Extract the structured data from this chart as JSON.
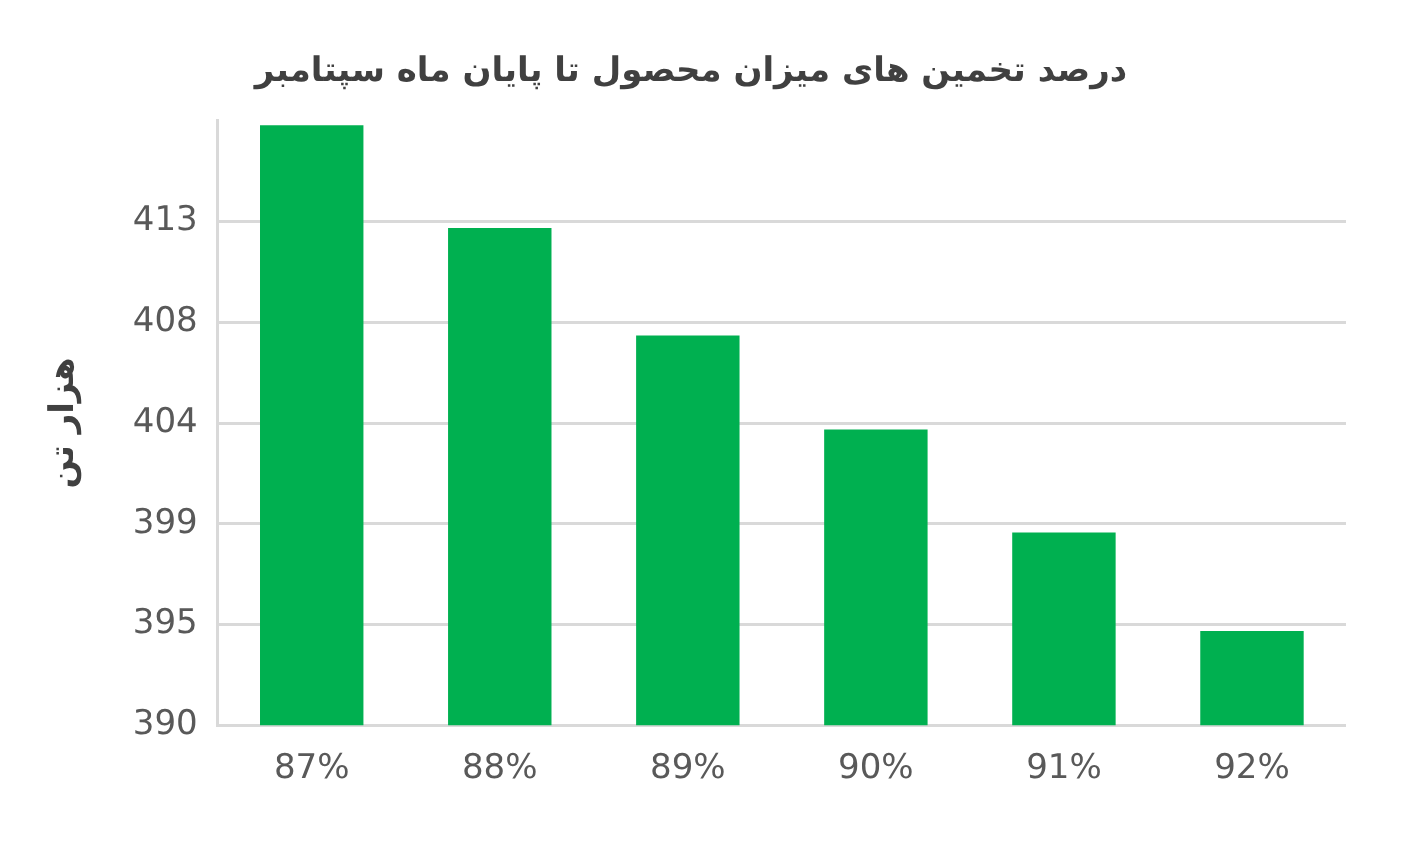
{
  "chart_data": {
    "type": "bar",
    "title": "درصد تخمین های میزان محصول تا پایان ماه سپتامبر",
    "ylabel": "هزار تن",
    "categories": [
      "87%",
      "88%",
      "89%",
      "90%",
      "91%",
      "92%"
    ],
    "values": [
      417.4,
      412.7,
      407.8,
      403.5,
      398.8,
      394.3
    ],
    "color": "#00b050",
    "ylim": [
      390,
      417.6
    ],
    "yticks": [
      390,
      {
        "value": 394.6,
        "label": "395"
      },
      {
        "value": 399.2,
        "label": "399"
      },
      {
        "value": 403.8,
        "label": "404"
      },
      {
        "value": 408.4,
        "label": "408"
      },
      413
    ],
    "grid": "y",
    "legend": false
  }
}
